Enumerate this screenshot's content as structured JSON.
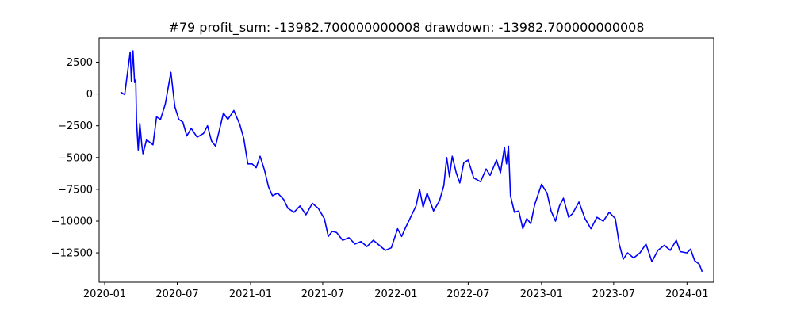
{
  "chart_data": {
    "type": "line",
    "title": "#79   profit_sum: -13982.700000000008 drawdown: -13982.700000000008",
    "xlabel": "",
    "ylabel": "",
    "grid": false,
    "x_ticks": [
      "2020-01",
      "2020-07",
      "2021-01",
      "2021-07",
      "2022-01",
      "2022-07",
      "2023-01",
      "2023-07",
      "2024-01"
    ],
    "y_ticks": [
      2500,
      0,
      -2500,
      -5000,
      -7500,
      -10000,
      -12500
    ],
    "xlim": [
      "2019-12-18",
      "2024-03-08"
    ],
    "ylim": [
      -14800,
      4400
    ],
    "series": [
      {
        "color": "#0000ff",
        "points": [
          [
            "2020-02-10",
            150
          ],
          [
            "2020-02-20",
            -50
          ],
          [
            "2020-03-05",
            3300
          ],
          [
            "2020-03-08",
            1000
          ],
          [
            "2020-03-12",
            3400
          ],
          [
            "2020-03-16",
            900
          ],
          [
            "2020-03-19",
            1100
          ],
          [
            "2020-03-21",
            -2200
          ],
          [
            "2020-03-25",
            -4400
          ],
          [
            "2020-03-29",
            -2300
          ],
          [
            "2020-04-03",
            -4000
          ],
          [
            "2020-04-06",
            -4700
          ],
          [
            "2020-04-15",
            -3600
          ],
          [
            "2020-05-01",
            -4000
          ],
          [
            "2020-05-10",
            -1800
          ],
          [
            "2020-05-20",
            -2000
          ],
          [
            "2020-06-01",
            -800
          ],
          [
            "2020-06-15",
            1700
          ],
          [
            "2020-06-25",
            -1000
          ],
          [
            "2020-07-05",
            -2000
          ],
          [
            "2020-07-15",
            -2200
          ],
          [
            "2020-07-25",
            -3300
          ],
          [
            "2020-08-05",
            -2700
          ],
          [
            "2020-08-20",
            -3400
          ],
          [
            "2020-09-05",
            -3100
          ],
          [
            "2020-09-15",
            -2500
          ],
          [
            "2020-09-25",
            -3700
          ],
          [
            "2020-10-05",
            -4100
          ],
          [
            "2020-10-15",
            -2800
          ],
          [
            "2020-10-25",
            -1500
          ],
          [
            "2020-11-05",
            -2000
          ],
          [
            "2020-11-20",
            -1300
          ],
          [
            "2020-12-05",
            -2400
          ],
          [
            "2020-12-15",
            -3500
          ],
          [
            "2020-12-25",
            -5500
          ],
          [
            "2021-01-05",
            -5500
          ],
          [
            "2021-01-15",
            -5800
          ],
          [
            "2021-01-25",
            -4900
          ],
          [
            "2021-02-05",
            -6000
          ],
          [
            "2021-02-15",
            -7300
          ],
          [
            "2021-02-25",
            -8000
          ],
          [
            "2021-03-10",
            -7800
          ],
          [
            "2021-03-25",
            -8300
          ],
          [
            "2021-04-05",
            -9000
          ],
          [
            "2021-04-20",
            -9300
          ],
          [
            "2021-05-05",
            -8800
          ],
          [
            "2021-05-20",
            -9500
          ],
          [
            "2021-06-05",
            -8600
          ],
          [
            "2021-06-20",
            -9000
          ],
          [
            "2021-07-05",
            -9800
          ],
          [
            "2021-07-15",
            -11200
          ],
          [
            "2021-07-25",
            -10800
          ],
          [
            "2021-08-05",
            -10900
          ],
          [
            "2021-08-20",
            -11500
          ],
          [
            "2021-09-05",
            -11300
          ],
          [
            "2021-09-20",
            -11800
          ],
          [
            "2021-10-05",
            -11600
          ],
          [
            "2021-10-20",
            -12000
          ],
          [
            "2021-11-05",
            -11500
          ],
          [
            "2021-11-20",
            -11900
          ],
          [
            "2021-12-05",
            -12300
          ],
          [
            "2021-12-20",
            -12100
          ],
          [
            "2022-01-05",
            -10600
          ],
          [
            "2022-01-15",
            -11200
          ],
          [
            "2022-01-25",
            -10500
          ],
          [
            "2022-02-05",
            -9800
          ],
          [
            "2022-02-20",
            -8800
          ],
          [
            "2022-03-01",
            -7500
          ],
          [
            "2022-03-10",
            -8900
          ],
          [
            "2022-03-20",
            -7800
          ],
          [
            "2022-04-05",
            -9200
          ],
          [
            "2022-04-20",
            -8400
          ],
          [
            "2022-05-01",
            -7200
          ],
          [
            "2022-05-08",
            -5000
          ],
          [
            "2022-05-15",
            -6500
          ],
          [
            "2022-05-22",
            -4900
          ],
          [
            "2022-06-01",
            -6200
          ],
          [
            "2022-06-10",
            -7000
          ],
          [
            "2022-06-20",
            -5400
          ],
          [
            "2022-07-01",
            -5200
          ],
          [
            "2022-07-15",
            -6600
          ],
          [
            "2022-08-01",
            -6900
          ],
          [
            "2022-08-15",
            -5900
          ],
          [
            "2022-08-25",
            -6400
          ],
          [
            "2022-09-10",
            -5200
          ],
          [
            "2022-09-20",
            -6200
          ],
          [
            "2022-09-30",
            -4200
          ],
          [
            "2022-10-05",
            -5500
          ],
          [
            "2022-10-10",
            -4100
          ],
          [
            "2022-10-15",
            -8000
          ],
          [
            "2022-10-25",
            -9300
          ],
          [
            "2022-11-05",
            -9200
          ],
          [
            "2022-11-15",
            -10600
          ],
          [
            "2022-11-25",
            -9800
          ],
          [
            "2022-12-05",
            -10200
          ],
          [
            "2022-12-15",
            -8700
          ],
          [
            "2023-01-01",
            -7100
          ],
          [
            "2023-01-15",
            -7800
          ],
          [
            "2023-01-25",
            -9200
          ],
          [
            "2023-02-05",
            -10000
          ],
          [
            "2023-02-15",
            -8800
          ],
          [
            "2023-02-25",
            -8200
          ],
          [
            "2023-03-10",
            -9700
          ],
          [
            "2023-03-20",
            -9400
          ],
          [
            "2023-04-05",
            -8500
          ],
          [
            "2023-04-20",
            -9800
          ],
          [
            "2023-05-05",
            -10600
          ],
          [
            "2023-05-20",
            -9700
          ],
          [
            "2023-06-05",
            -10000
          ],
          [
            "2023-06-20",
            -9300
          ],
          [
            "2023-07-05",
            -9800
          ],
          [
            "2023-07-15",
            -11800
          ],
          [
            "2023-07-25",
            -13000
          ],
          [
            "2023-08-05",
            -12500
          ],
          [
            "2023-08-20",
            -12900
          ],
          [
            "2023-09-05",
            -12500
          ],
          [
            "2023-09-20",
            -11800
          ],
          [
            "2023-10-05",
            -13200
          ],
          [
            "2023-10-20",
            -12300
          ],
          [
            "2023-11-05",
            -11900
          ],
          [
            "2023-11-20",
            -12300
          ],
          [
            "2023-12-05",
            -11500
          ],
          [
            "2023-12-15",
            -12400
          ],
          [
            "2024-01-01",
            -12500
          ],
          [
            "2024-01-10",
            -12200
          ],
          [
            "2024-01-20",
            -13100
          ],
          [
            "2024-02-01",
            -13400
          ],
          [
            "2024-02-08",
            -13982.7
          ]
        ]
      }
    ]
  }
}
